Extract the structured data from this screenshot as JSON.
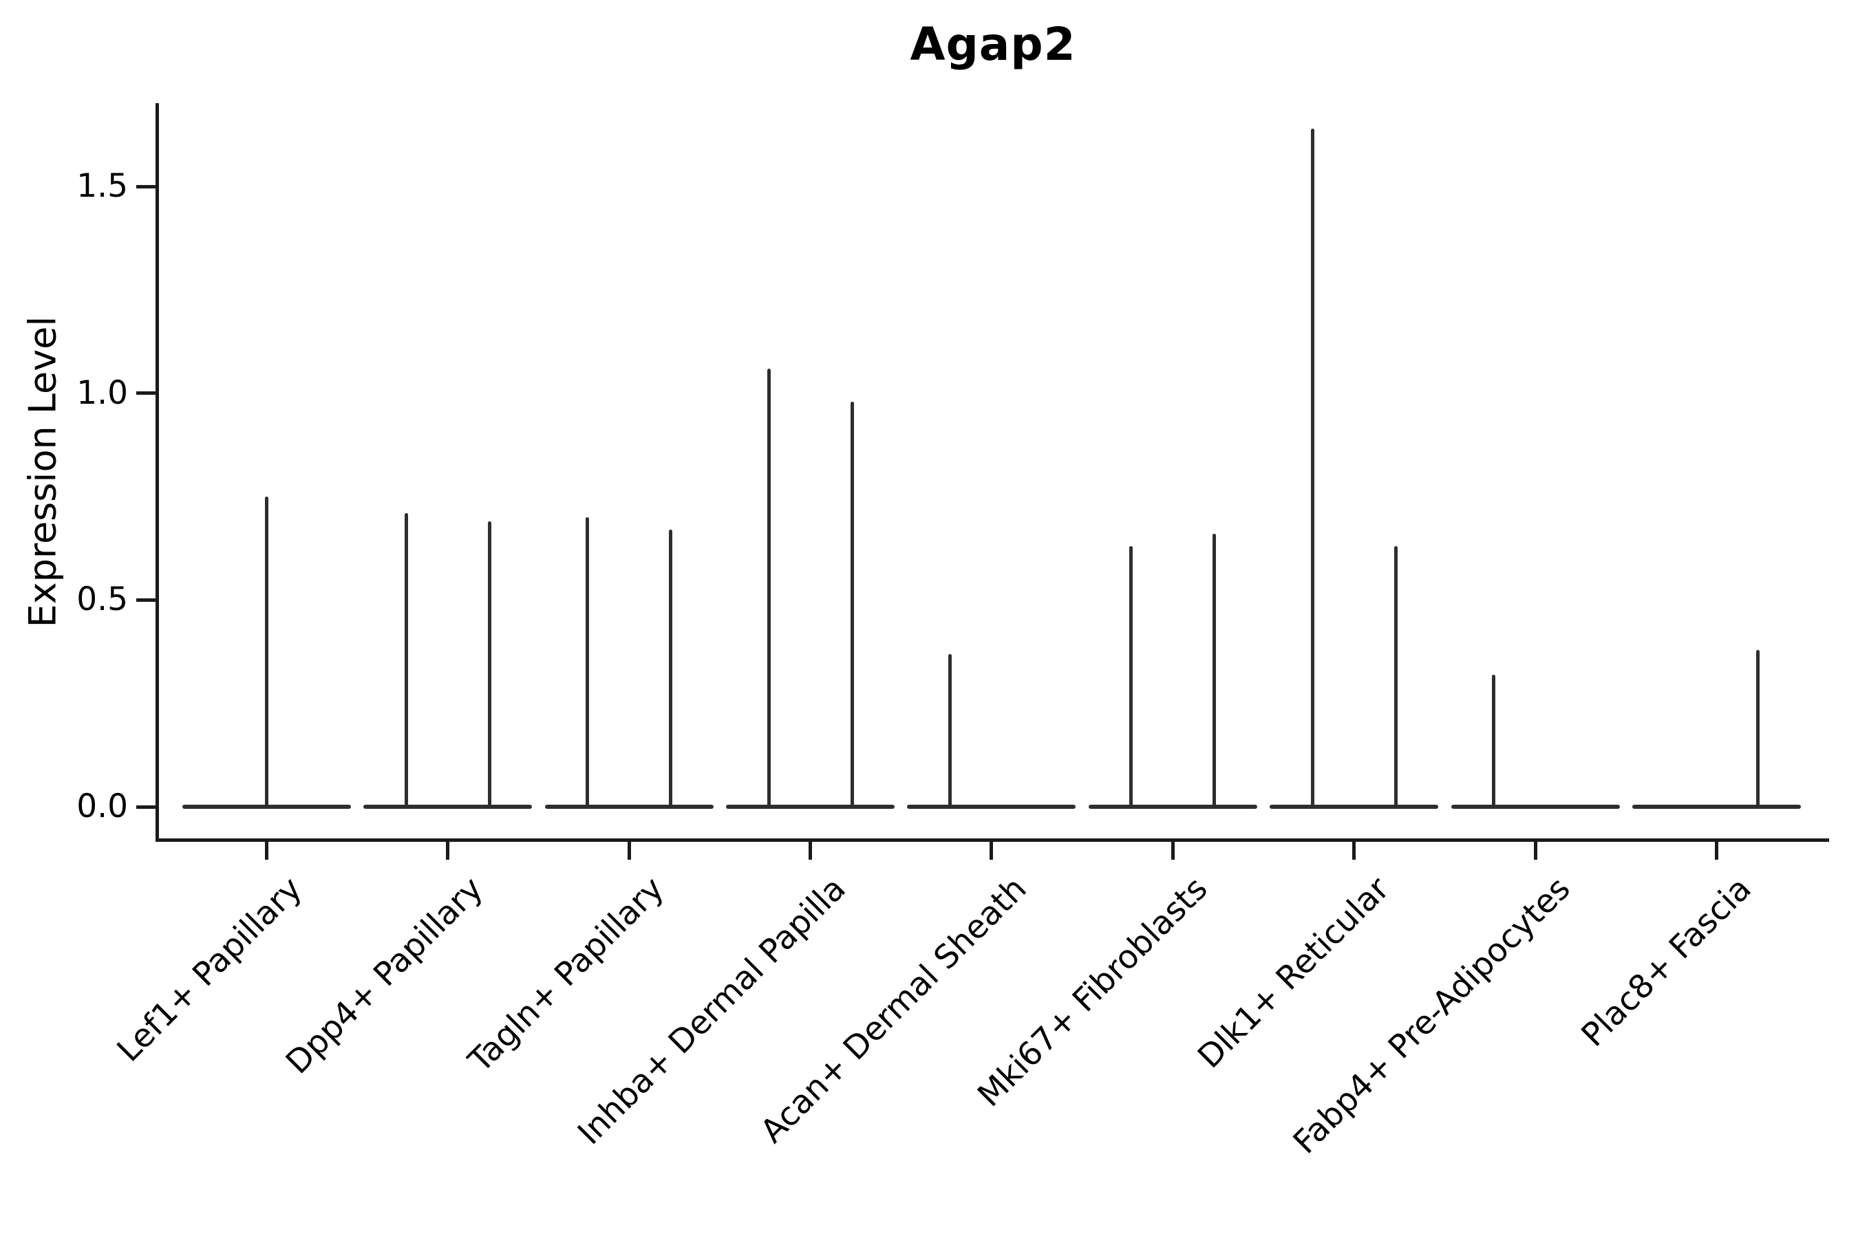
{
  "figure": {
    "background": "#ffffff",
    "axis_color": "#1a1a1a",
    "violin_color": "#2e2e2e",
    "text_color": "#000000"
  },
  "chart_data": {
    "type": "violin",
    "title": "Agap2",
    "xlabel": "",
    "ylabel": "Expression Level",
    "grid": false,
    "legend_position": "none",
    "ylim": [
      -0.08,
      1.7
    ],
    "yticks": [
      0.0,
      0.5,
      1.0,
      1.5
    ],
    "ytick_labels": [
      "0.0",
      "0.5",
      "1.0",
      "1.5"
    ],
    "categories": [
      "Lef1+ Papillary",
      "Dpp4+ Papillary",
      "Tagln+ Papillary",
      "Inhba+ Dermal Papilla",
      "Acan+ Dermal Sheath",
      "Mki67+ Fibroblasts",
      "Dlk1+ Reticular",
      "Fabp4+ Pre-Adipocytes",
      "Plac8+ Fascia"
    ],
    "baseline_value": 0.0,
    "baseline_halfwidth_frac": 0.465,
    "violins": [
      {
        "label": "Lef1+ Papillary",
        "spikes": [
          {
            "pos": 0.0,
            "value": 0.75
          }
        ]
      },
      {
        "label": "Dpp4+ Papillary",
        "spikes": [
          {
            "pos": -0.23,
            "value": 0.71
          },
          {
            "pos": 0.23,
            "value": 0.69
          }
        ]
      },
      {
        "label": "Tagln+ Papillary",
        "spikes": [
          {
            "pos": -0.23,
            "value": 0.7
          },
          {
            "pos": 0.23,
            "value": 0.67
          }
        ]
      },
      {
        "label": "Inhba+ Dermal Papilla",
        "spikes": [
          {
            "pos": -0.23,
            "value": 1.06
          },
          {
            "pos": 0.23,
            "value": 0.98
          }
        ]
      },
      {
        "label": "Acan+ Dermal Sheath",
        "spikes": [
          {
            "pos": -0.23,
            "value": 0.37
          }
        ]
      },
      {
        "label": "Mki67+ Fibroblasts",
        "spikes": [
          {
            "pos": -0.23,
            "value": 0.63
          },
          {
            "pos": 0.23,
            "value": 0.66
          }
        ]
      },
      {
        "label": "Dlk1+ Reticular",
        "spikes": [
          {
            "pos": -0.23,
            "value": 1.64
          },
          {
            "pos": 0.23,
            "value": 0.63
          }
        ]
      },
      {
        "label": "Fabp4+ Pre-Adipocytes",
        "spikes": [
          {
            "pos": -0.23,
            "value": 0.32
          }
        ]
      },
      {
        "label": "Plac8+ Fascia",
        "spikes": [
          {
            "pos": 0.23,
            "value": 0.38
          }
        ]
      }
    ]
  }
}
